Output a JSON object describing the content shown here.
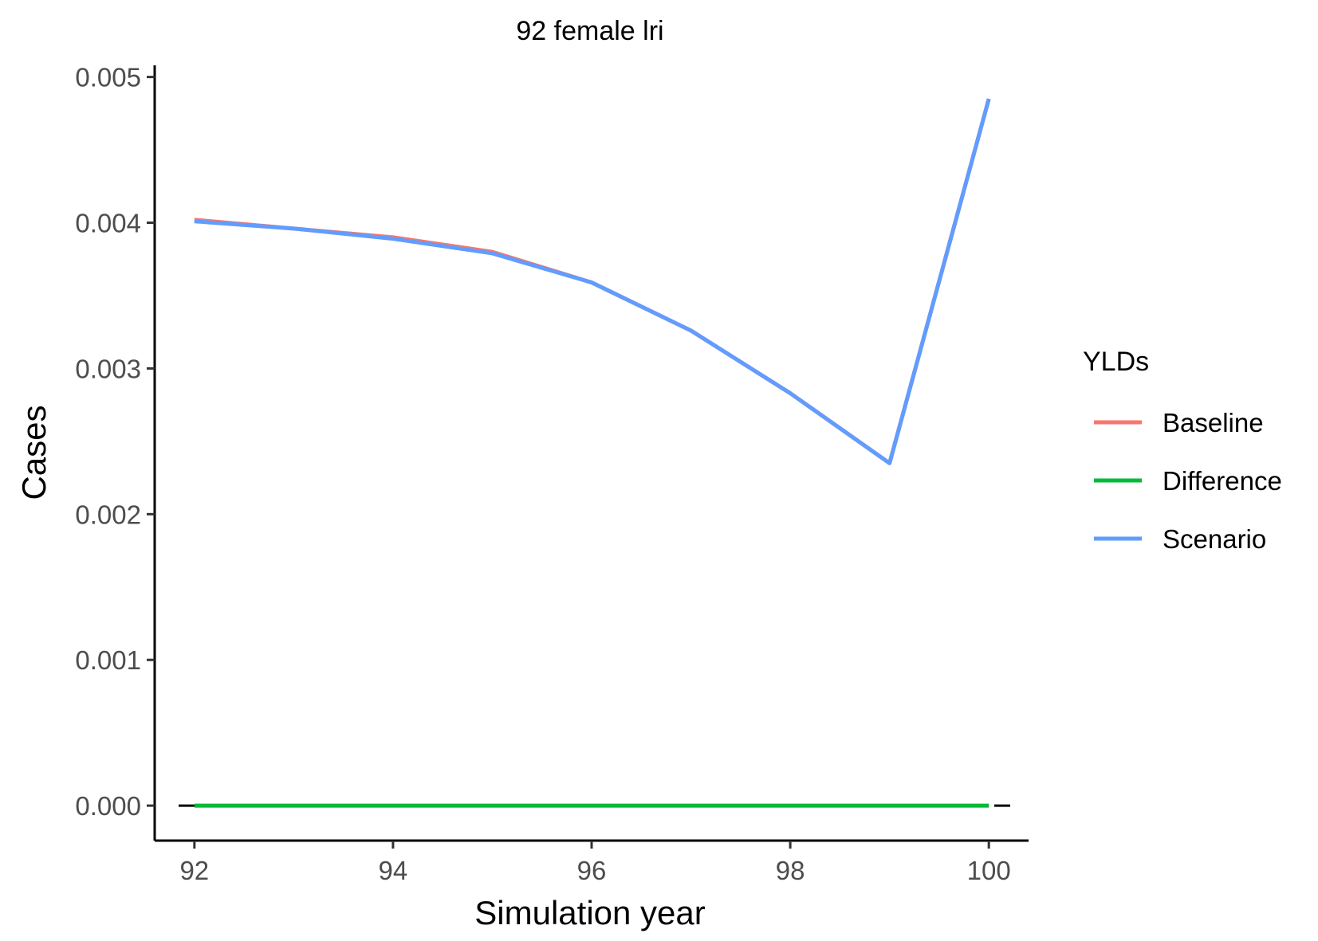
{
  "chart_data": {
    "type": "line",
    "title": "92 female lri",
    "xlabel": "Simulation year",
    "ylabel": "Cases",
    "x": [
      92,
      93,
      94,
      95,
      96,
      97,
      98,
      99,
      100
    ],
    "series": [
      {
        "name": "Baseline",
        "color": "#F8766D",
        "values": [
          0.00402,
          0.00396,
          0.0039,
          0.0038,
          0.00359,
          0.00326,
          0.00283,
          0.00235,
          0.00485
        ]
      },
      {
        "name": "Difference",
        "color": "#00BA38",
        "values": [
          0,
          0,
          0,
          0,
          0,
          0,
          0,
          0,
          0
        ]
      },
      {
        "name": "Scenario",
        "color": "#619CFF",
        "values": [
          0.00401,
          0.00396,
          0.00389,
          0.00379,
          0.00359,
          0.00326,
          0.00283,
          0.00235,
          0.00485
        ]
      }
    ],
    "xticks": [
      92,
      94,
      96,
      98,
      100
    ],
    "xtick_labels": [
      "92",
      "94",
      "96",
      "98",
      "100"
    ],
    "yticks": [
      0,
      0.001,
      0.002,
      0.003,
      0.004,
      0.005
    ],
    "ytick_labels": [
      "0.000",
      "0.001",
      "0.002",
      "0.003",
      "0.004",
      "0.005"
    ],
    "xlim": [
      91.6,
      100.4
    ],
    "ylim": [
      -0.00024,
      0.00508
    ],
    "reference_line": {
      "y": 0,
      "style": "dashed",
      "color": "#000000"
    },
    "grid": false,
    "legend": {
      "title": "YLDs",
      "position": "right"
    }
  }
}
